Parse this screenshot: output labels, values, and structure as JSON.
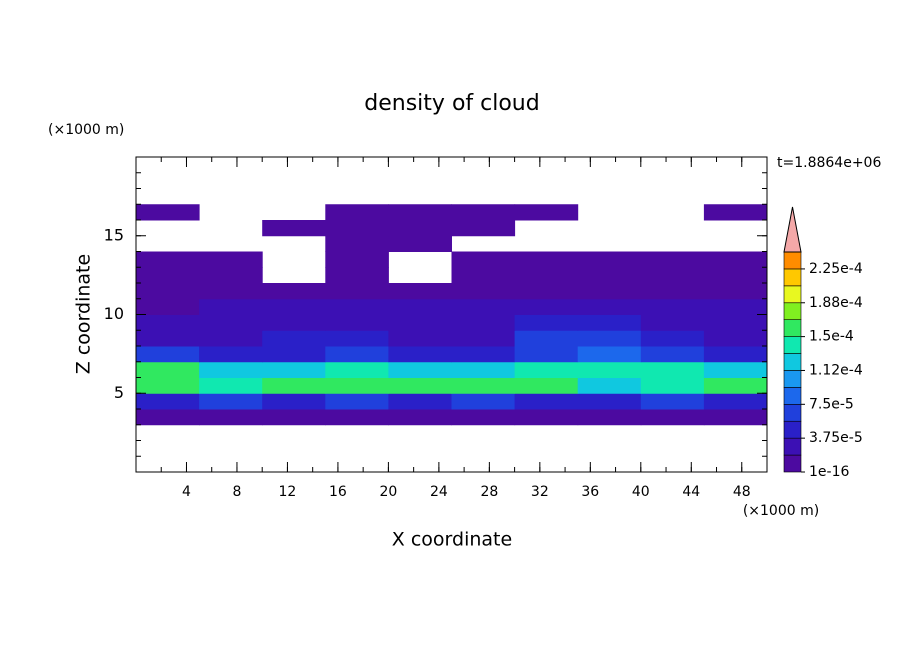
{
  "chart_data": {
    "type": "contour",
    "title": "density of cloud",
    "x_label": "X coordinate",
    "y_label": "Z coordinate",
    "x_unit": "(×1000 m)",
    "y_unit": "(×1000 m)",
    "time_label": "t=1.8864e+06",
    "xlim": [
      0,
      50
    ],
    "ylim": [
      0,
      20
    ],
    "xticks": [
      4,
      8,
      12,
      16,
      20,
      24,
      28,
      32,
      36,
      40,
      44,
      48
    ],
    "yticks": [
      5,
      10,
      15
    ],
    "x": [
      2.5,
      7.5,
      12.5,
      17.5,
      22.5,
      27.5,
      32.5,
      37.5,
      42.5,
      47.5
    ],
    "z": [
      3.5,
      4.5,
      5.5,
      6.5,
      7.5,
      8.5,
      9.5,
      10.5,
      11.5,
      12.5,
      13.5,
      14.5,
      15.5,
      16.5
    ],
    "values": [
      [
        1e-05,
        1e-05,
        1e-05,
        1e-05,
        1e-05,
        1e-05,
        1e-05,
        1e-05,
        1e-05,
        1e-05
      ],
      [
        5e-05,
        6e-05,
        5.5e-05,
        6e-05,
        5e-05,
        6e-05,
        5.5e-05,
        5e-05,
        6e-05,
        5.5e-05
      ],
      [
        0.00016,
        0.00014,
        0.00015,
        0.00016,
        0.00015,
        0.000155,
        0.000165,
        0.00013,
        0.000145,
        0.00015
      ],
      [
        0.00015,
        0.00012,
        0.00013,
        0.00014,
        0.00012,
        0.00013,
        0.000145,
        0.00014,
        0.000135,
        0.00012
      ],
      [
        6e-05,
        4e-05,
        5e-05,
        6e-05,
        5e-05,
        4.5e-05,
        7e-05,
        8e-05,
        6e-05,
        5e-05
      ],
      [
        2e-05,
        3e-05,
        4e-05,
        4e-05,
        3e-05,
        3e-05,
        6e-05,
        7e-05,
        4e-05,
        3e-05
      ],
      [
        2e-05,
        2e-05,
        3e-05,
        3e-05,
        2.5e-05,
        3e-05,
        4e-05,
        5e-05,
        3e-05,
        2e-05
      ],
      [
        1.5e-05,
        2e-05,
        2e-05,
        2.5e-05,
        2e-05,
        2e-05,
        3e-05,
        3e-05,
        2e-05,
        2e-05
      ],
      [
        1e-05,
        1.2e-05,
        1e-05,
        1.2e-05,
        1e-05,
        1e-05,
        1.2e-05,
        1.2e-05,
        1e-05,
        1e-05
      ],
      [
        5e-06,
        5e-06,
        null,
        5e-06,
        null,
        5e-06,
        5e-06,
        5e-06,
        5e-06,
        5e-06
      ],
      [
        5e-06,
        5e-06,
        null,
        5e-06,
        null,
        5e-06,
        5e-06,
        5e-06,
        5e-06,
        5e-06
      ],
      [
        null,
        null,
        null,
        5e-06,
        5e-06,
        null,
        null,
        null,
        null,
        null
      ],
      [
        null,
        null,
        5e-06,
        5e-06,
        5e-06,
        5e-06,
        null,
        null,
        null,
        null
      ],
      [
        5e-06,
        null,
        null,
        5e-06,
        5e-06,
        5e-06,
        5e-06,
        null,
        null,
        5e-06
      ]
    ],
    "levels": [
      1e-16,
      1.875e-05,
      3.75e-05,
      5.625e-05,
      7.5e-05,
      9.375e-05,
      0.0001125,
      0.00013125,
      0.00015,
      0.00016875,
      0.0001875,
      0.00020625,
      0.000225,
      0.00024375
    ],
    "colors": [
      "#4c0aa0",
      "#3c10b4",
      "#2a20c8",
      "#2040dc",
      "#1c68ec",
      "#1a98f0",
      "#10c8e0",
      "#10e8b0",
      "#30e860",
      "#80f020",
      "#e8f820",
      "#ffc800",
      "#ff8c00"
    ],
    "extend_color": "#f4a8a8",
    "colorbar_ticks": [
      1e-16,
      {
        "value": 3.75e-05,
        "label": "3.75e-5"
      },
      {
        "value": 7.5e-05,
        "label": "7.5e-5"
      },
      {
        "value": 0.0001125,
        "label": "1.12e-4"
      },
      {
        "value": 0.00015,
        "label": "1.5e-4"
      },
      {
        "value": 0.0001875,
        "label": "1.88e-4"
      },
      {
        "value": 0.000225,
        "label": "2.25e-4"
      }
    ]
  }
}
